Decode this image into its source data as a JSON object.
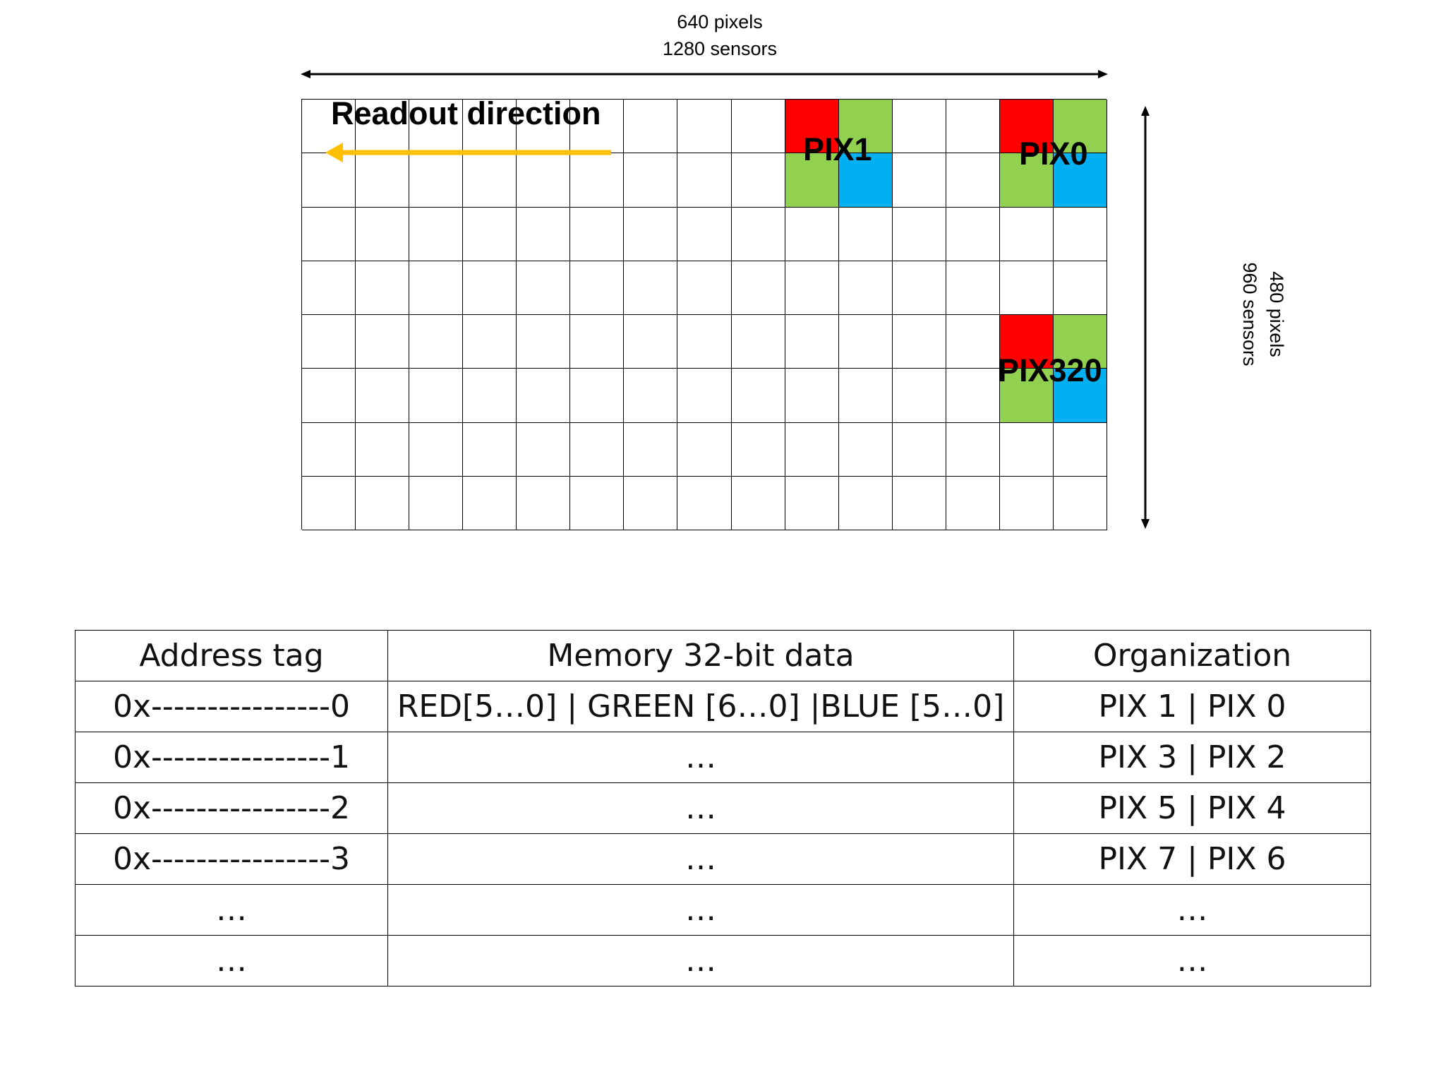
{
  "sensor": {
    "width_label_1": "640 pixels",
    "width_label_2": "1280 sensors",
    "height_label_1": "480 pixels",
    "height_label_2": "960 sensors",
    "readout_label": "Readout direction",
    "pix_labels": {
      "pix1": "PIX1",
      "pix0": "PIX0",
      "pix320": "PIX320"
    },
    "colors": {
      "red": "#ff0000",
      "green": "#92d050",
      "blue": "#00b0f0",
      "arrow": "#ffc000"
    }
  },
  "table": {
    "headers": [
      "Address tag",
      "Memory 32-bit data",
      "Organization"
    ],
    "rows": [
      [
        "0x----------------0",
        "RED[5…0] | GREEN [6…0] |BLUE [5…0]",
        "PIX 1 | PIX 0"
      ],
      [
        "0x----------------1",
        "…",
        "PIX 3 | PIX 2"
      ],
      [
        "0x----------------2",
        "…",
        "PIX 5 | PIX 4"
      ],
      [
        "0x----------------3",
        "…",
        "PIX 7 | PIX 6"
      ],
      [
        "…",
        "…",
        "…"
      ],
      [
        "…",
        "…",
        "…"
      ]
    ]
  }
}
